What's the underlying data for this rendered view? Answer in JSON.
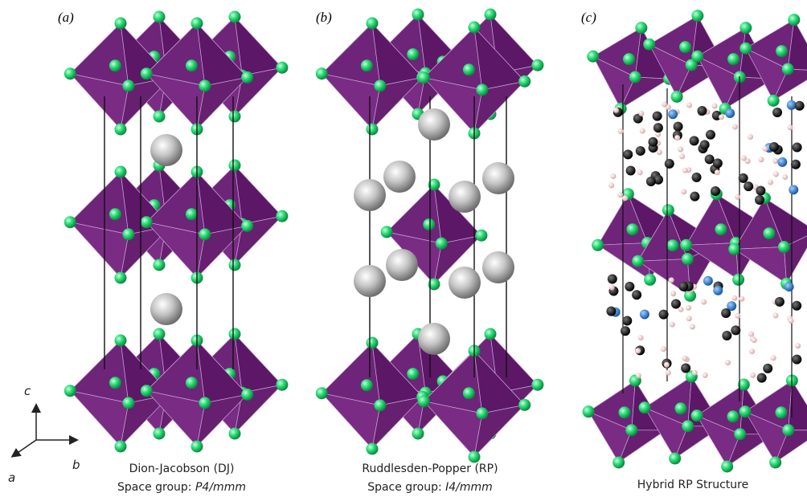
{
  "panels": [
    {
      "label": "(a)",
      "title": "Dion-Jacobson (DJ)",
      "space_group_prefix": "Space group:",
      "space_group": "P4/mmm"
    },
    {
      "label": "(b)",
      "title": "Ruddlesden-Popper (RP)",
      "space_group_prefix": "Space group:",
      "space_group": "I4/mmm"
    },
    {
      "label": "(c)",
      "title": "Hybrid RP Structure"
    }
  ],
  "axes": {
    "c": "c",
    "b": "b",
    "a": "a"
  }
}
